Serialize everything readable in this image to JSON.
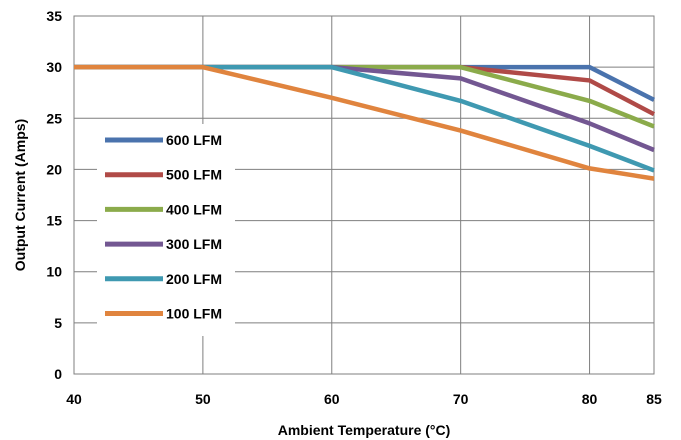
{
  "chart_data": {
    "type": "line",
    "title": "",
    "xlabel": "Ambient Temperature (°C)",
    "ylabel": "Output Current (Amps)",
    "x": [
      40,
      50,
      60,
      70,
      80,
      85
    ],
    "xticks": [
      "40",
      "50",
      "60",
      "70",
      "80",
      "85"
    ],
    "yticks": [
      "0",
      "5",
      "10",
      "15",
      "20",
      "25",
      "30",
      "35"
    ],
    "xlim": [
      40,
      85
    ],
    "ylim": [
      0,
      35
    ],
    "grid": true,
    "legend_position": "left-center",
    "series": [
      {
        "name": "600 LFM",
        "color": "#4a73ad",
        "values": [
          30,
          30,
          30,
          30,
          30,
          26.8
        ]
      },
      {
        "name": "500 LFM",
        "color": "#b04a47",
        "values": [
          30,
          30,
          30,
          30,
          28.7,
          25.4
        ]
      },
      {
        "name": "400 LFM",
        "color": "#8bab4b",
        "values": [
          30,
          30,
          30,
          30,
          26.7,
          24.2
        ]
      },
      {
        "name": "300 LFM",
        "color": "#735792",
        "values": [
          30,
          30,
          30,
          28.9,
          24.5,
          21.9
        ]
      },
      {
        "name": "200 LFM",
        "color": "#3f99b1",
        "values": [
          30,
          30,
          30,
          26.7,
          22.3,
          19.9
        ]
      },
      {
        "name": "100 LFM",
        "color": "#e0843e",
        "values": [
          30,
          30,
          27.0,
          23.8,
          20.1,
          19.1
        ]
      }
    ]
  }
}
